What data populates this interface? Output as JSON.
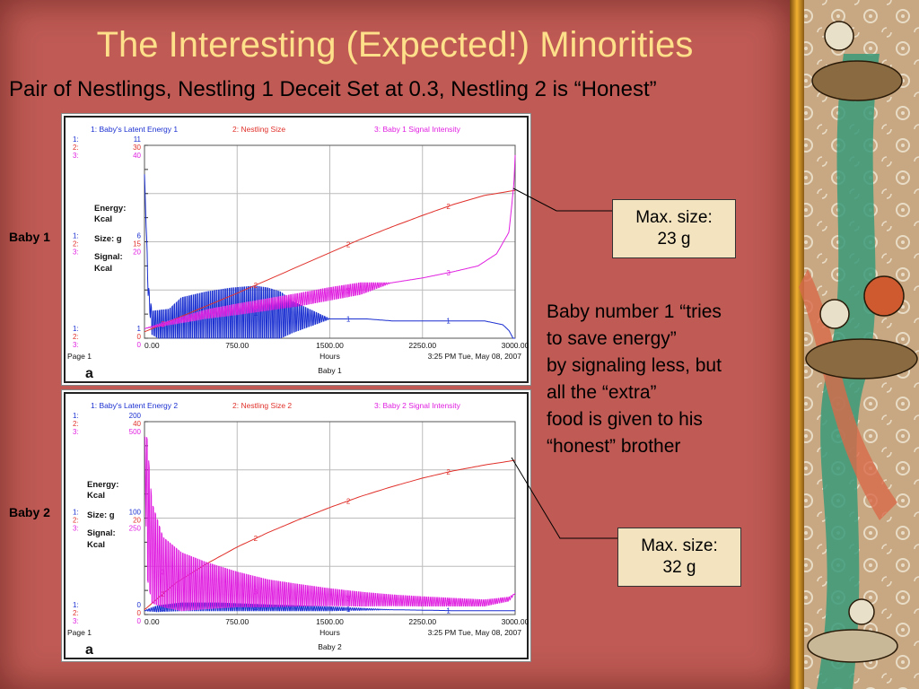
{
  "slide": {
    "title": "The Interesting (Expected!) Minorities",
    "subtitle": "Pair of Nestlings, Nestling 1 Deceit Set at 0.3, Nestling 2 is “Honest”",
    "baby1_label": "Baby 1",
    "baby2_label": "Baby 2",
    "callout1": [
      "Max. size:",
      "23 g"
    ],
    "callout2": [
      "Max. size:",
      "32 g"
    ],
    "body_lines": [
      "Baby number 1 “tries",
      "to save energy”",
      "by signaling less, but",
      "all the “extra”",
      "food is given to his",
      "“honest” brother"
    ]
  },
  "colors": {
    "series1": "#1a2fd0",
    "series2": "#e0302a",
    "series3": "#e020e0",
    "background": "#bf5a54",
    "title": "#ffe08a"
  },
  "chart_data": [
    {
      "type": "line",
      "title": "Baby 1",
      "legend": [
        "1: Baby's Latent Energy 1",
        "2: Nestling Size",
        "3: Baby 1 Signal Intensity"
      ],
      "xlabel": "Hours",
      "xlim": [
        0,
        3000
      ],
      "xticks": [
        "0.00",
        "750.00",
        "1500.00",
        "2250.00",
        "3000.00"
      ],
      "axis_labels": [
        "Energy:",
        "Kcal",
        "Size: g",
        "Signal:",
        "Kcal"
      ],
      "scale_prefix": [
        "1:",
        "2:",
        "3:"
      ],
      "scale_top": [
        "11",
        "30",
        "40"
      ],
      "scale_mid": [
        "6",
        "15",
        "20"
      ],
      "scale_bottom": [
        "1",
        "0",
        "0"
      ],
      "footer": {
        "page": "Page 1",
        "time": "3:25 PM   Tue, May 08, 2007"
      },
      "series": [
        {
          "id": 1,
          "name": "Baby's Latent Energy 1",
          "axis": [
            1,
            11
          ],
          "x": [
            0,
            30,
            60,
            200,
            300,
            500,
            700,
            900,
            1000,
            1100,
            1200,
            1500,
            1800,
            2000,
            2250,
            2500,
            2750,
            2900,
            2950,
            3000
          ],
          "y": [
            9.5,
            3.5,
            1.8,
            1.6,
            1.9,
            2.1,
            2.2,
            2.3,
            2.3,
            2.2,
            2.1,
            2.0,
            2.0,
            1.9,
            1.9,
            1.9,
            1.9,
            1.7,
            1.4,
            0.8
          ],
          "osc_amp": [
            0,
            0.3,
            0.6,
            0.9,
            1.2,
            1.3,
            1.4,
            1.4,
            1.3,
            1.2,
            0.8,
            0,
            0,
            0,
            0,
            0,
            0,
            0,
            0,
            0
          ]
        },
        {
          "id": 2,
          "name": "Nestling Size",
          "axis": [
            0,
            30
          ],
          "x": [
            0,
            250,
            500,
            750,
            1000,
            1250,
            1500,
            1750,
            2000,
            2250,
            2500,
            2750,
            3000
          ],
          "y": [
            1.0,
            3.0,
            5.0,
            7.0,
            9.1,
            11.2,
            13.3,
            15.4,
            17.3,
            19.1,
            20.8,
            22.2,
            23.0
          ]
        },
        {
          "id": 3,
          "name": "Baby 1 Signal Intensity",
          "axis": [
            0,
            40
          ],
          "x": [
            0,
            250,
            500,
            750,
            1000,
            1250,
            1500,
            1750,
            2000,
            2250,
            2500,
            2700,
            2850,
            2950,
            2990,
            3000
          ],
          "y": [
            2.0,
            3.5,
            5.0,
            6.0,
            7.0,
            8.0,
            9.2,
            10.3,
            11.5,
            12.5,
            13.8,
            15.0,
            17.5,
            22.0,
            32.0,
            38.0
          ],
          "osc_amp": [
            0,
            0.5,
            0.9,
            1.1,
            1.2,
            1.3,
            1.3,
            1.2,
            0,
            0,
            0,
            0,
            0,
            0,
            0,
            0
          ]
        }
      ]
    },
    {
      "type": "line",
      "title": "Baby 2",
      "legend": [
        "1: Baby's Latent Energy 2",
        "2: Nestling Size 2",
        "3: Baby 2 Signal Intensity"
      ],
      "xlabel": "Hours",
      "xlim": [
        0,
        3000
      ],
      "xticks": [
        "0.00",
        "750.00",
        "1500.00",
        "2250.00",
        "3000.00"
      ],
      "axis_labels": [
        "Energy:",
        "Kcal",
        "Size: g",
        "Signal:",
        "Kcal"
      ],
      "scale_prefix": [
        "1:",
        "2:",
        "3:"
      ],
      "scale_top": [
        "200",
        "40",
        "500"
      ],
      "scale_mid": [
        "100",
        "20",
        "250"
      ],
      "scale_bottom": [
        "0",
        "0",
        "0"
      ],
      "footer": {
        "page": "Page 1",
        "time": "3:25 PM   Tue, May 08, 2007"
      },
      "series": [
        {
          "id": 1,
          "name": "Baby's Latent Energy 2",
          "axis": [
            0,
            200
          ],
          "x": [
            0,
            100,
            300,
            600,
            1000,
            1500,
            2000,
            2500,
            3000
          ],
          "y": [
            4,
            6,
            8,
            8,
            7,
            6,
            5,
            4,
            4
          ],
          "osc_amp": [
            0,
            3,
            4,
            4,
            3,
            2,
            0,
            0,
            0
          ]
        },
        {
          "id": 2,
          "name": "Nestling Size 2",
          "axis": [
            0,
            40
          ],
          "x": [
            0,
            250,
            500,
            750,
            1000,
            1250,
            1500,
            1750,
            2000,
            2250,
            2500,
            2750,
            3000
          ],
          "y": [
            1.0,
            6.5,
            10.5,
            14.0,
            17.0,
            19.7,
            22.2,
            24.5,
            26.5,
            28.3,
            29.8,
            31.0,
            32.0
          ]
        },
        {
          "id": 3,
          "name": "Baby 2 Signal Intensity",
          "axis": [
            0,
            500
          ],
          "x": [
            0,
            20,
            60,
            150,
            300,
            500,
            750,
            1000,
            1250,
            1500,
            1750,
            2000,
            2250,
            2500,
            2750,
            2950,
            3000
          ],
          "y": [
            460,
            280,
            160,
            110,
            85,
            75,
            65,
            55,
            50,
            45,
            40,
            37,
            34,
            32,
            30,
            40,
            55
          ],
          "osc_amp": [
            0,
            180,
            130,
            90,
            75,
            60,
            45,
            35,
            28,
            22,
            18,
            14,
            12,
            10,
            8,
            5,
            0
          ]
        }
      ]
    }
  ]
}
